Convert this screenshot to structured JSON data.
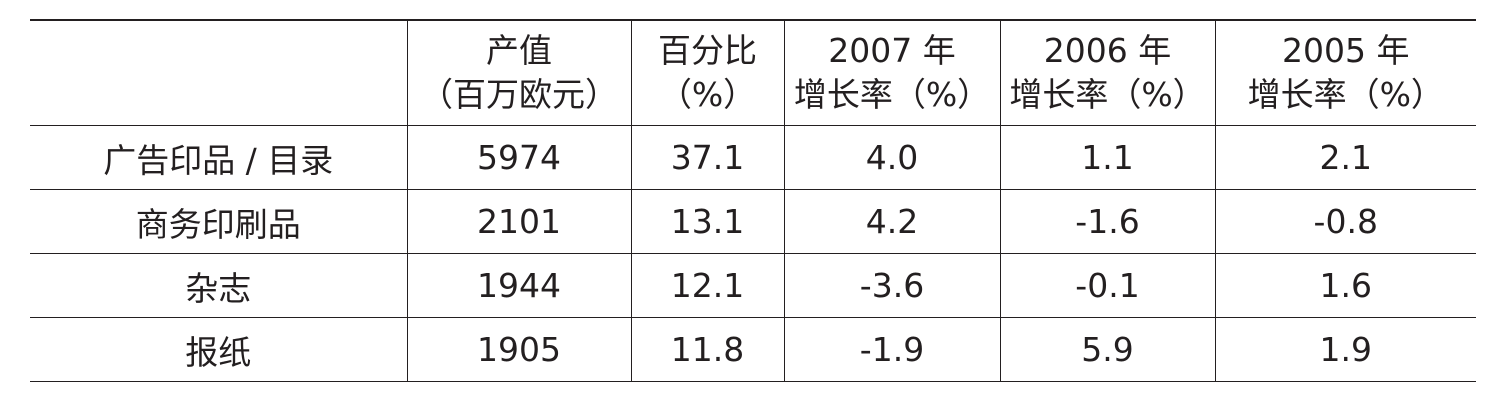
{
  "table": {
    "header": [
      [
        "产值",
        "（百万欧元）"
      ],
      [
        "百分比",
        "（%）"
      ],
      [
        "2007 年",
        "增长率（%）"
      ],
      [
        "2006 年",
        "增长率（%）"
      ],
      [
        "2005 年",
        "增长率（%）"
      ]
    ],
    "rows": [
      [
        "广告印品 / 目录",
        "5974",
        "37.1",
        "4.0",
        "1.1",
        "2.1"
      ],
      [
        "商务印刷品",
        "2101",
        "13.1",
        "4.2",
        "-1.6",
        "-0.8"
      ],
      [
        "杂志",
        "1944",
        "12.1",
        "-3.6",
        "-0.1",
        "1.6"
      ],
      [
        "报纸",
        "1905",
        "11.8",
        "-1.9",
        "5.9",
        "1.9"
      ]
    ]
  }
}
